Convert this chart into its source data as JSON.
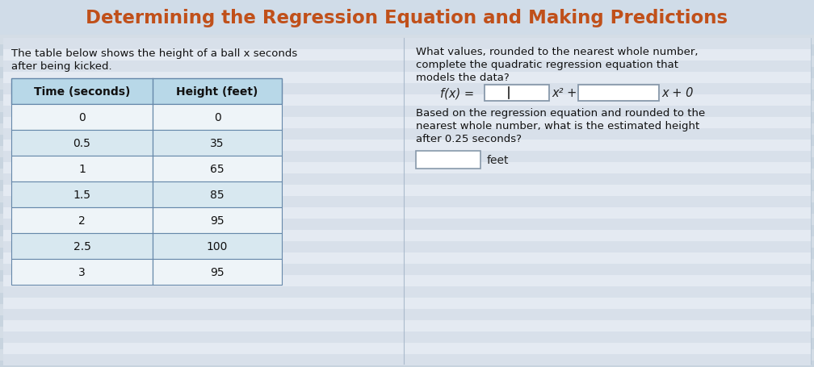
{
  "title": "Determining the Regression Equation and Making Predictions",
  "title_color": "#C0501A",
  "title_fontsize": 16.5,
  "title_bg_color": "#D0DCE8",
  "body_bg": "#C8D4DF",
  "content_bg": "#EBF0F5",
  "left_text_1": "The table below shows the height of a ball x seconds",
  "left_text_2": "after being kicked.",
  "table_header": [
    "Time (seconds)",
    "Height (feet)"
  ],
  "table_header_bg": "#B8D8E8",
  "table_data": [
    [
      "0",
      "0"
    ],
    [
      "0.5",
      "35"
    ],
    [
      "1",
      "65"
    ],
    [
      "1.5",
      "85"
    ],
    [
      "2",
      "95"
    ],
    [
      "2.5",
      "100"
    ],
    [
      "3",
      "95"
    ]
  ],
  "table_row_alt1": "#EEF4F8",
  "table_row_alt2": "#D8E8F0",
  "right_text_1": "What values, rounded to the nearest whole number,",
  "right_text_2": "complete the quadratic regression equation that",
  "right_text_3": "models the data?",
  "eq_prefix": "f(x) = ",
  "eq_x2_suffix": "x² +",
  "eq_x_suffix": "x + 0",
  "q_line1": "Based on the regression equation and rounded to the",
  "q_line2": "nearest whole number, what is the estimated height",
  "q_line3": "after 0.25 seconds?",
  "feet_label": "feet",
  "stripe_color": "#C8D4DF",
  "stripe_color2": "#D4DDE6",
  "box_border": "#8899AA",
  "table_border": "#6688AA"
}
